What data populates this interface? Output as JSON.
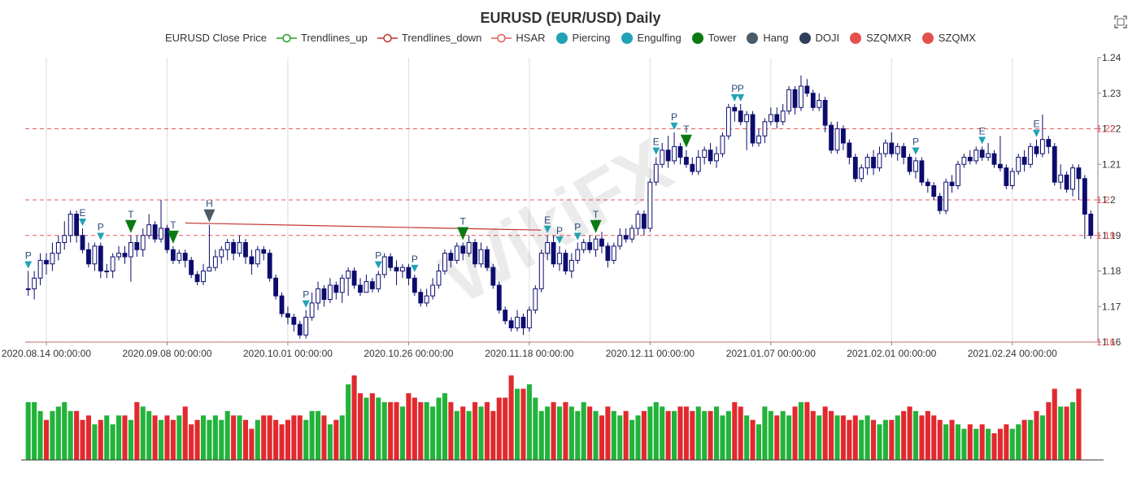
{
  "title": "EURUSD (EUR/USD) Daily",
  "toolbox": {
    "icon": "restore-zoom-icon"
  },
  "legend": [
    {
      "label": "EURUSD Close Price",
      "kind": "none",
      "color": "#333333"
    },
    {
      "label": "Trendlines_up",
      "kind": "line-circle",
      "color": "#22a022"
    },
    {
      "label": "Trendlines_down",
      "kind": "line-circle",
      "color": "#c23531"
    },
    {
      "label": "HSAR",
      "kind": "line-circle",
      "color": "#e8575b"
    },
    {
      "label": "Piercing",
      "kind": "dot",
      "color": "#21a2b5"
    },
    {
      "label": "Engulfing",
      "kind": "dot",
      "color": "#21a2b5"
    },
    {
      "label": "Tower",
      "kind": "dot",
      "color": "#0a7a12"
    },
    {
      "label": "Hang",
      "kind": "dot",
      "color": "#4b5a67"
    },
    {
      "label": "DOJI",
      "kind": "dot",
      "color": "#2f3e5c"
    },
    {
      "label": "SZQMXR",
      "kind": "dot",
      "color": "#e4504c"
    },
    {
      "label": "SZQMX",
      "kind": "dot",
      "color": "#e4504c"
    }
  ],
  "watermark": "WikiFX",
  "colors": {
    "bear_candle": "#0c0c6e",
    "bull_candle_border": "#0c0c6e",
    "volume_up": "#22b33a",
    "volume_down": "#e2292e",
    "hsar_line": "#e8575b",
    "trend_down_line": "#c23531",
    "grid": "#dddddd"
  },
  "chart_data": {
    "type": "candlestick",
    "title": "EURUSD (EUR/USD) Daily",
    "y_axis": {
      "min": 1.16,
      "max": 1.24,
      "ticks": [
        "1.16",
        "1.17",
        "1.18",
        "1.19",
        "1.2",
        "1.21",
        "1.22",
        "1.23",
        "1.24"
      ],
      "position": "right"
    },
    "x_axis": {
      "labels": [
        "2020.08.14 00:00:00",
        "2020.09.08 00:00:00",
        "2020.10.01 00:00:00",
        "2020.10.26 00:00:00",
        "2020.11.18 00:00:00",
        "2020.12.11 00:00:00",
        "2021.01.07 00:00:00",
        "2021.02.01 00:00:00",
        "2021.02.24 00:00:00"
      ],
      "label_candle_index": [
        3,
        23,
        43,
        63,
        83,
        103,
        123,
        143,
        163
      ]
    },
    "grid": true,
    "legend_placement": "top-center",
    "hsar_levels": [
      1.16,
      1.19,
      1.2,
      1.22
    ],
    "hsar_labels": [
      "1.16",
      "1.19",
      "1.2",
      "1.22"
    ],
    "trendline_down": {
      "from_index": 26,
      "to_index": 85,
      "start": 1.1935,
      "end": 1.1915
    },
    "candles": [
      [
        1.175,
        1.175,
        1.18,
        1.173
      ],
      [
        1.175,
        1.178,
        1.18,
        1.172
      ],
      [
        1.178,
        1.183,
        1.185,
        1.176
      ],
      [
        1.183,
        1.182,
        1.185,
        1.179
      ],
      [
        1.182,
        1.185,
        1.188,
        1.18
      ],
      [
        1.185,
        1.188,
        1.19,
        1.183
      ],
      [
        1.188,
        1.19,
        1.194,
        1.186
      ],
      [
        1.19,
        1.196,
        1.197,
        1.188
      ],
      [
        1.196,
        1.19,
        1.197,
        1.188
      ],
      [
        1.19,
        1.186,
        1.192,
        1.185
      ],
      [
        1.186,
        1.182,
        1.188,
        1.181
      ],
      [
        1.182,
        1.187,
        1.188,
        1.18
      ],
      [
        1.187,
        1.18,
        1.188,
        1.178
      ],
      [
        1.18,
        1.18,
        1.182,
        1.178
      ],
      [
        1.18,
        1.184,
        1.185,
        1.178
      ],
      [
        1.184,
        1.185,
        1.187,
        1.183
      ],
      [
        1.185,
        1.184,
        1.187,
        1.182
      ],
      [
        1.184,
        1.188,
        1.19,
        1.177
      ],
      [
        1.188,
        1.186,
        1.19,
        1.184
      ],
      [
        1.186,
        1.19,
        1.192,
        1.184
      ],
      [
        1.19,
        1.193,
        1.196,
        1.189
      ],
      [
        1.193,
        1.189,
        1.194,
        1.188
      ],
      [
        1.189,
        1.192,
        1.2,
        1.188
      ],
      [
        1.192,
        1.186,
        1.193,
        1.185
      ],
      [
        1.186,
        1.183,
        1.187,
        1.182
      ],
      [
        1.183,
        1.185,
        1.186,
        1.182
      ],
      [
        1.185,
        1.183,
        1.186,
        1.181
      ],
      [
        1.183,
        1.179,
        1.184,
        1.178
      ],
      [
        1.179,
        1.177,
        1.18,
        1.176
      ],
      [
        1.177,
        1.18,
        1.182,
        1.176
      ],
      [
        1.18,
        1.181,
        1.193,
        1.18
      ],
      [
        1.181,
        1.184,
        1.186,
        1.18
      ],
      [
        1.184,
        1.186,
        1.187,
        1.182
      ],
      [
        1.186,
        1.188,
        1.189,
        1.183
      ],
      [
        1.188,
        1.185,
        1.189,
        1.183
      ],
      [
        1.185,
        1.188,
        1.19,
        1.184
      ],
      [
        1.188,
        1.184,
        1.189,
        1.182
      ],
      [
        1.184,
        1.182,
        1.186,
        1.179
      ],
      [
        1.182,
        1.186,
        1.187,
        1.181
      ],
      [
        1.186,
        1.185,
        1.187,
        1.183
      ],
      [
        1.185,
        1.178,
        1.186,
        1.177
      ],
      [
        1.178,
        1.173,
        1.179,
        1.172
      ],
      [
        1.173,
        1.168,
        1.174,
        1.167
      ],
      [
        1.168,
        1.167,
        1.17,
        1.165
      ],
      [
        1.167,
        1.165,
        1.168,
        1.163
      ],
      [
        1.165,
        1.162,
        1.166,
        1.161
      ],
      [
        1.162,
        1.167,
        1.169,
        1.161
      ],
      [
        1.167,
        1.171,
        1.174,
        1.166
      ],
      [
        1.171,
        1.175,
        1.177,
        1.169
      ],
      [
        1.175,
        1.172,
        1.176,
        1.17
      ],
      [
        1.172,
        1.176,
        1.178,
        1.171
      ],
      [
        1.176,
        1.174,
        1.177,
        1.172
      ],
      [
        1.174,
        1.178,
        1.179,
        1.171
      ],
      [
        1.178,
        1.18,
        1.181,
        1.173
      ],
      [
        1.18,
        1.176,
        1.181,
        1.175
      ],
      [
        1.176,
        1.174,
        1.178,
        1.173
      ],
      [
        1.174,
        1.177,
        1.179,
        1.174
      ],
      [
        1.177,
        1.175,
        1.178,
        1.174
      ],
      [
        1.175,
        1.179,
        1.18,
        1.174
      ],
      [
        1.179,
        1.184,
        1.185,
        1.178
      ],
      [
        1.184,
        1.181,
        1.185,
        1.18
      ],
      [
        1.181,
        1.18,
        1.183,
        1.176
      ],
      [
        1.18,
        1.181,
        1.182,
        1.178
      ],
      [
        1.181,
        1.178,
        1.182,
        1.176
      ],
      [
        1.178,
        1.174,
        1.179,
        1.173
      ],
      [
        1.174,
        1.171,
        1.175,
        1.17
      ],
      [
        1.171,
        1.173,
        1.175,
        1.17
      ],
      [
        1.173,
        1.176,
        1.178,
        1.172
      ],
      [
        1.176,
        1.18,
        1.182,
        1.175
      ],
      [
        1.18,
        1.185,
        1.186,
        1.179
      ],
      [
        1.185,
        1.183,
        1.186,
        1.181
      ],
      [
        1.183,
        1.187,
        1.188,
        1.182
      ],
      [
        1.187,
        1.185,
        1.188,
        1.183
      ],
      [
        1.185,
        1.188,
        1.19,
        1.184
      ],
      [
        1.188,
        1.182,
        1.189,
        1.181
      ],
      [
        1.182,
        1.186,
        1.188,
        1.181
      ],
      [
        1.186,
        1.181,
        1.187,
        1.18
      ],
      [
        1.181,
        1.176,
        1.182,
        1.175
      ],
      [
        1.176,
        1.169,
        1.177,
        1.168
      ],
      [
        1.169,
        1.166,
        1.17,
        1.165
      ],
      [
        1.166,
        1.164,
        1.167,
        1.163
      ],
      [
        1.164,
        1.167,
        1.169,
        1.163
      ],
      [
        1.167,
        1.164,
        1.168,
        1.162
      ],
      [
        1.164,
        1.169,
        1.17,
        1.163
      ],
      [
        1.169,
        1.175,
        1.176,
        1.168
      ],
      [
        1.175,
        1.185,
        1.186,
        1.174
      ],
      [
        1.185,
        1.188,
        1.19,
        1.183
      ],
      [
        1.188,
        1.182,
        1.19,
        1.181
      ],
      [
        1.182,
        1.185,
        1.187,
        1.18
      ],
      [
        1.185,
        1.18,
        1.186,
        1.179
      ],
      [
        1.18,
        1.183,
        1.185,
        1.178
      ],
      [
        1.183,
        1.186,
        1.188,
        1.182
      ],
      [
        1.186,
        1.188,
        1.189,
        1.185
      ],
      [
        1.188,
        1.186,
        1.19,
        1.185
      ],
      [
        1.186,
        1.189,
        1.19,
        1.184
      ],
      [
        1.189,
        1.187,
        1.191,
        1.185
      ],
      [
        1.187,
        1.183,
        1.188,
        1.181
      ],
      [
        1.183,
        1.187,
        1.188,
        1.182
      ],
      [
        1.187,
        1.19,
        1.192,
        1.186
      ],
      [
        1.19,
        1.189,
        1.192,
        1.188
      ],
      [
        1.189,
        1.192,
        1.193,
        1.188
      ],
      [
        1.192,
        1.196,
        1.197,
        1.19
      ],
      [
        1.196,
        1.192,
        1.197,
        1.19
      ],
      [
        1.192,
        1.205,
        1.206,
        1.191
      ],
      [
        1.205,
        1.21,
        1.212,
        1.204
      ],
      [
        1.21,
        1.214,
        1.216,
        1.209
      ],
      [
        1.214,
        1.211,
        1.218,
        1.209
      ],
      [
        1.211,
        1.215,
        1.219,
        1.21
      ],
      [
        1.215,
        1.212,
        1.216,
        1.21
      ],
      [
        1.212,
        1.21,
        1.214,
        1.209
      ],
      [
        1.21,
        1.208,
        1.212,
        1.207
      ],
      [
        1.208,
        1.212,
        1.214,
        1.207
      ],
      [
        1.212,
        1.214,
        1.215,
        1.21
      ],
      [
        1.214,
        1.211,
        1.216,
        1.21
      ],
      [
        1.211,
        1.213,
        1.215,
        1.209
      ],
      [
        1.213,
        1.218,
        1.219,
        1.212
      ],
      [
        1.218,
        1.226,
        1.227,
        1.217
      ],
      [
        1.226,
        1.225,
        1.227,
        1.222
      ],
      [
        1.225,
        1.222,
        1.227,
        1.221
      ],
      [
        1.222,
        1.224,
        1.225,
        1.214
      ],
      [
        1.224,
        1.216,
        1.225,
        1.215
      ],
      [
        1.216,
        1.218,
        1.22,
        1.215
      ],
      [
        1.218,
        1.222,
        1.223,
        1.216
      ],
      [
        1.222,
        1.224,
        1.226,
        1.221
      ],
      [
        1.224,
        1.222,
        1.226,
        1.22
      ],
      [
        1.222,
        1.225,
        1.227,
        1.221
      ],
      [
        1.225,
        1.231,
        1.232,
        1.224
      ],
      [
        1.231,
        1.226,
        1.232,
        1.224
      ],
      [
        1.226,
        1.232,
        1.235,
        1.225
      ],
      [
        1.232,
        1.23,
        1.234,
        1.229
      ],
      [
        1.23,
        1.226,
        1.231,
        1.225
      ],
      [
        1.226,
        1.228,
        1.23,
        1.225
      ],
      [
        1.228,
        1.221,
        1.229,
        1.219
      ],
      [
        1.221,
        1.214,
        1.222,
        1.213
      ],
      [
        1.214,
        1.22,
        1.222,
        1.213
      ],
      [
        1.22,
        1.216,
        1.221,
        1.214
      ],
      [
        1.216,
        1.212,
        1.217,
        1.21
      ],
      [
        1.212,
        1.206,
        1.213,
        1.205
      ],
      [
        1.206,
        1.209,
        1.21,
        1.205
      ],
      [
        1.209,
        1.212,
        1.213,
        1.207
      ],
      [
        1.212,
        1.209,
        1.214,
        1.207
      ],
      [
        1.209,
        1.213,
        1.215,
        1.208
      ],
      [
        1.213,
        1.216,
        1.217,
        1.212
      ],
      [
        1.216,
        1.213,
        1.219,
        1.212
      ],
      [
        1.213,
        1.215,
        1.216,
        1.211
      ],
      [
        1.215,
        1.212,
        1.216,
        1.21
      ],
      [
        1.212,
        1.208,
        1.213,
        1.207
      ],
      [
        1.208,
        1.211,
        1.212,
        1.206
      ],
      [
        1.211,
        1.205,
        1.212,
        1.204
      ],
      [
        1.205,
        1.204,
        1.206,
        1.202
      ],
      [
        1.204,
        1.201,
        1.205,
        1.2
      ],
      [
        1.201,
        1.197,
        1.202,
        1.196
      ],
      [
        1.197,
        1.205,
        1.206,
        1.196
      ],
      [
        1.205,
        1.204,
        1.207,
        1.202
      ],
      [
        1.204,
        1.21,
        1.211,
        1.203
      ],
      [
        1.21,
        1.212,
        1.213,
        1.209
      ],
      [
        1.212,
        1.211,
        1.214,
        1.21
      ],
      [
        1.211,
        1.214,
        1.215,
        1.21
      ],
      [
        1.214,
        1.212,
        1.215,
        1.211
      ],
      [
        1.212,
        1.213,
        1.216,
        1.211
      ],
      [
        1.213,
        1.21,
        1.214,
        1.209
      ],
      [
        1.21,
        1.209,
        1.218,
        1.208
      ],
      [
        1.209,
        1.204,
        1.21,
        1.203
      ],
      [
        1.204,
        1.208,
        1.209,
        1.203
      ],
      [
        1.208,
        1.212,
        1.213,
        1.207
      ],
      [
        1.212,
        1.21,
        1.214,
        1.208
      ],
      [
        1.21,
        1.215,
        1.216,
        1.209
      ],
      [
        1.215,
        1.213,
        1.217,
        1.212
      ],
      [
        1.213,
        1.217,
        1.224,
        1.212
      ],
      [
        1.217,
        1.215,
        1.218,
        1.213
      ],
      [
        1.215,
        1.205,
        1.216,
        1.204
      ],
      [
        1.205,
        1.207,
        1.21,
        1.203
      ],
      [
        1.207,
        1.203,
        1.208,
        1.202
      ],
      [
        1.203,
        1.209,
        1.21,
        1.201
      ],
      [
        1.209,
        1.206,
        1.21,
        1.2
      ],
      [
        1.206,
        1.196,
        1.207,
        1.189
      ],
      [
        1.196,
        1.19,
        1.197,
        1.189
      ]
    ],
    "volume": [
      13,
      13,
      11,
      9,
      11,
      12,
      13,
      11,
      11,
      9,
      10,
      8,
      9,
      10,
      8,
      10,
      10,
      9,
      13,
      12,
      11,
      10,
      9,
      10,
      9,
      10,
      12,
      8,
      9,
      10,
      9,
      10,
      9,
      11,
      10,
      10,
      9,
      7,
      9,
      10,
      10,
      9,
      8,
      9,
      10,
      10,
      9,
      11,
      11,
      10,
      8,
      9,
      10,
      17,
      19,
      15,
      14,
      15,
      14,
      13,
      13,
      13,
      12,
      15,
      14,
      13,
      13,
      12,
      14,
      15,
      13,
      11,
      12,
      11,
      13,
      12,
      13,
      11,
      14,
      14,
      19,
      16,
      16,
      17,
      14,
      11,
      12,
      13,
      12,
      13,
      12,
      11,
      13,
      12,
      11,
      10,
      12,
      11,
      10,
      11,
      9,
      10,
      11,
      12,
      13,
      12,
      11,
      11,
      12,
      12,
      11,
      12,
      11,
      11,
      12,
      10,
      11,
      13,
      12,
      10,
      9,
      8,
      12,
      11,
      10,
      11,
      10,
      12,
      13,
      13,
      11,
      10,
      12,
      11,
      10,
      10,
      9,
      10,
      9,
      10,
      9,
      8,
      9,
      9,
      10,
      11,
      12,
      11,
      10,
      11,
      10,
      9,
      8,
      9,
      8,
      7,
      8,
      7,
      8,
      7,
      6,
      7,
      8,
      7,
      8,
      9,
      9,
      11,
      10,
      13,
      16,
      12,
      12,
      13,
      16
    ]
  },
  "markers": [
    {
      "index": 0,
      "letter": "P",
      "type": "Piercing",
      "dir": "up"
    },
    {
      "index": 9,
      "letter": "E",
      "type": "Engulfing",
      "dir": "up"
    },
    {
      "index": 12,
      "letter": "P",
      "type": "Piercing",
      "dir": "up"
    },
    {
      "index": 17,
      "letter": "T",
      "type": "Tower",
      "dir": "down"
    },
    {
      "index": 24,
      "letter": "T",
      "type": "Tower",
      "dir": "down"
    },
    {
      "index": 30,
      "letter": "H",
      "type": "Hang",
      "dir": "down"
    },
    {
      "index": 46,
      "letter": "P",
      "type": "Piercing",
      "dir": "up"
    },
    {
      "index": 58,
      "letter": "P",
      "type": "Piercing",
      "dir": "up"
    },
    {
      "index": 64,
      "letter": "P",
      "type": "Piercing",
      "dir": "up"
    },
    {
      "index": 72,
      "letter": "T",
      "type": "Tower",
      "dir": "down"
    },
    {
      "index": 86,
      "letter": "E",
      "type": "Engulfing",
      "dir": "up"
    },
    {
      "index": 88,
      "letter": "P",
      "type": "Piercing",
      "dir": "up"
    },
    {
      "index": 91,
      "letter": "P",
      "type": "Piercing",
      "dir": "up"
    },
    {
      "index": 94,
      "letter": "T",
      "type": "Tower",
      "dir": "down"
    },
    {
      "index": 104,
      "letter": "E",
      "type": "Engulfing",
      "dir": "up"
    },
    {
      "index": 107,
      "letter": "P",
      "type": "Piercing",
      "dir": "up"
    },
    {
      "index": 109,
      "letter": "T",
      "type": "Tower",
      "dir": "down"
    },
    {
      "index": 117,
      "letter": "P",
      "type": "Piercing",
      "dir": "up"
    },
    {
      "index": 118,
      "letter": "P",
      "type": "Piercing",
      "dir": "up"
    },
    {
      "index": 147,
      "letter": "P",
      "type": "Piercing",
      "dir": "up"
    },
    {
      "index": 158,
      "letter": "E",
      "type": "Engulfing",
      "dir": "up"
    },
    {
      "index": 167,
      "letter": "E",
      "type": "Engulfing",
      "dir": "up"
    }
  ]
}
